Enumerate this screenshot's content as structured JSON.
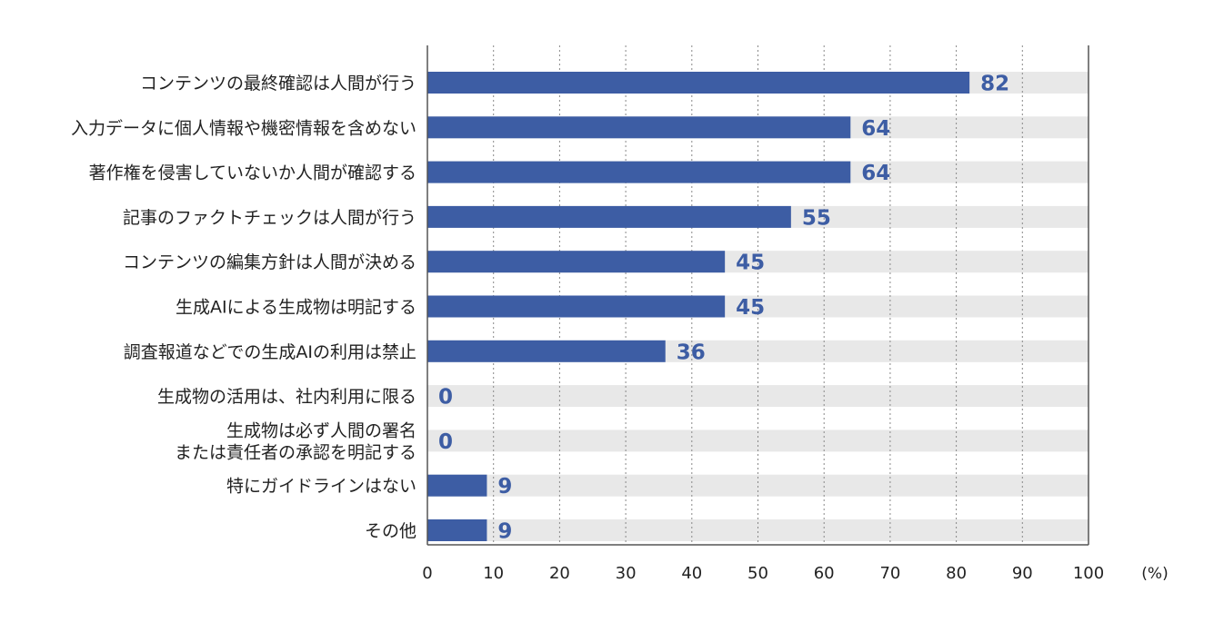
{
  "chart_data": {
    "type": "bar",
    "orientation": "horizontal",
    "categories": [
      [
        "コンテンツの最終確認は人間が行う"
      ],
      [
        "入力データに個人情報や機密情報を含めない"
      ],
      [
        "著作権を侵害していないか人間が確認する"
      ],
      [
        "記事のファクトチェックは人間が行う"
      ],
      [
        "コンテンツの編集方針は人間が決める"
      ],
      [
        "生成AIによる生成物は明記する"
      ],
      [
        "調査報道などでの生成AIの利用は禁止"
      ],
      [
        "生成物の活用は、社内利用に限る"
      ],
      [
        "生成物は必ず人間の署名",
        "または責任者の承認を明記する"
      ],
      [
        "特にガイドラインはない"
      ],
      [
        "その他"
      ]
    ],
    "values": [
      82,
      64,
      64,
      55,
      45,
      45,
      36,
      0,
      0,
      9,
      9
    ],
    "xlim": [
      0,
      100
    ],
    "xticks": [
      0,
      10,
      20,
      30,
      40,
      50,
      60,
      70,
      80,
      90,
      100
    ],
    "unit": "(%)",
    "grid": "vertical dotted",
    "colors": {
      "bar": "#3d5da4",
      "track": "#e8e8e8",
      "value_text": "#3d5da4",
      "axis": "#555555",
      "grid": "#888888"
    }
  }
}
